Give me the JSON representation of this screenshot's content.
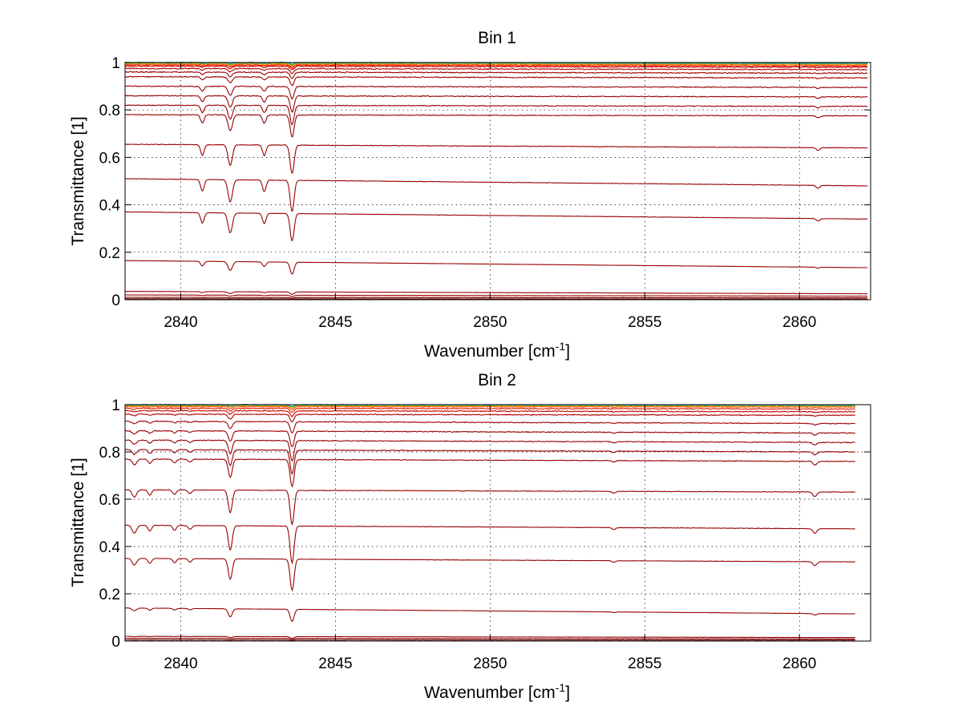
{
  "chart_data": [
    {
      "type": "line",
      "title": "Bin 1",
      "xlabel": "Wavenumber [cm",
      "xlabel_superscript": "-1",
      "xlabel_suffix": "]",
      "ylabel": "Transmittance [1]",
      "xlim": [
        2838.2,
        2862.3
      ],
      "ylim": [
        0,
        1
      ],
      "x_ticks": [
        2840,
        2845,
        2850,
        2855,
        2860
      ],
      "y_ticks": [
        0,
        0.2,
        0.4,
        0.6,
        0.8,
        1
      ],
      "x_tick_labels": [
        "2840",
        "2845",
        "2850",
        "2855",
        "2860"
      ],
      "y_tick_labels": [
        "0",
        "0.2",
        "0.4",
        "0.6",
        "0.8",
        "1"
      ],
      "grid": true,
      "x_end": 2862.2,
      "absorption_lines": [
        {
          "x": 2840.7,
          "relative_depth": 0.12,
          "width": 0.08
        },
        {
          "x": 2841.6,
          "relative_depth": 0.23,
          "width": 0.1
        },
        {
          "x": 2842.7,
          "relative_depth": 0.12,
          "width": 0.08
        },
        {
          "x": 2843.6,
          "relative_depth": 0.32,
          "width": 0.09
        },
        {
          "x": 2860.6,
          "relative_depth": 0.03,
          "width": 0.08
        }
      ],
      "series": [
        {
          "baseline": [
            1.0,
            0.997
          ],
          "color": "#1f9e9e"
        },
        {
          "baseline": [
            0.999,
            0.996
          ],
          "color": "#4caf50"
        },
        {
          "baseline": [
            0.998,
            0.995
          ],
          "color": "#c8c832"
        },
        {
          "baseline": [
            0.996,
            0.993
          ],
          "color": "#ffa500"
        },
        {
          "baseline": [
            0.994,
            0.99
          ],
          "color": "#ff4500"
        },
        {
          "baseline": [
            0.99,
            0.985
          ],
          "color": "#e02000"
        },
        {
          "baseline": [
            0.985,
            0.98
          ],
          "color": "#cc0000"
        },
        {
          "baseline": [
            0.975,
            0.97
          ],
          "color": "#b00000"
        },
        {
          "baseline": [
            0.96,
            0.955
          ],
          "color": "#a00000"
        },
        {
          "baseline": [
            0.94,
            0.935
          ],
          "color": "#a00000"
        },
        {
          "baseline": [
            0.9,
            0.895
          ],
          "color": "#990000"
        },
        {
          "baseline": [
            0.86,
            0.855
          ],
          "color": "#990000"
        },
        {
          "baseline": [
            0.82,
            0.815
          ],
          "color": "#990000"
        },
        {
          "baseline": [
            0.78,
            0.775
          ],
          "color": "#990000"
        },
        {
          "baseline": [
            0.655,
            0.64
          ],
          "color": "#990000"
        },
        {
          "baseline": [
            0.51,
            0.48
          ],
          "color": "#990000"
        },
        {
          "baseline": [
            0.37,
            0.34
          ],
          "color": "#990000"
        },
        {
          "baseline": [
            0.165,
            0.135
          ],
          "color": "#990000"
        },
        {
          "baseline": [
            0.035,
            0.025
          ],
          "color": "#990000"
        },
        {
          "baseline": [
            0.02,
            0.015
          ],
          "color": "#990000"
        },
        {
          "baseline": [
            0.01,
            0.008
          ],
          "color": "#800000"
        },
        {
          "baseline": [
            0.004,
            0.003
          ],
          "color": "#700000"
        }
      ]
    },
    {
      "type": "line",
      "title": "Bin 2",
      "xlabel": "Wavenumber [cm",
      "xlabel_superscript": "-1",
      "xlabel_suffix": "]",
      "ylabel": "Transmittance [1]",
      "xlim": [
        2838.2,
        2862.3
      ],
      "ylim": [
        0,
        1
      ],
      "x_ticks": [
        2840,
        2845,
        2850,
        2855,
        2860
      ],
      "y_ticks": [
        0,
        0.2,
        0.4,
        0.6,
        0.8,
        1
      ],
      "x_tick_labels": [
        "2840",
        "2845",
        "2850",
        "2855",
        "2860"
      ],
      "y_tick_labels": [
        "0",
        "0.2",
        "0.4",
        "0.6",
        "0.8",
        "1"
      ],
      "grid": true,
      "x_end": 2861.8,
      "absorption_lines": [
        {
          "x": 2838.5,
          "relative_depth": 0.08,
          "width": 0.1
        },
        {
          "x": 2839.0,
          "relative_depth": 0.06,
          "width": 0.08
        },
        {
          "x": 2839.8,
          "relative_depth": 0.05,
          "width": 0.08
        },
        {
          "x": 2840.3,
          "relative_depth": 0.04,
          "width": 0.08
        },
        {
          "x": 2841.6,
          "relative_depth": 0.25,
          "width": 0.09
        },
        {
          "x": 2843.6,
          "relative_depth": 0.38,
          "width": 0.09
        },
        {
          "x": 2854.0,
          "relative_depth": 0.02,
          "width": 0.08
        },
        {
          "x": 2860.5,
          "relative_depth": 0.05,
          "width": 0.09
        }
      ],
      "series": [
        {
          "baseline": [
            1.0,
            0.998
          ],
          "color": "#1f9e9e"
        },
        {
          "baseline": [
            0.999,
            0.997
          ],
          "color": "#4caf50"
        },
        {
          "baseline": [
            0.998,
            0.996
          ],
          "color": "#c8c832"
        },
        {
          "baseline": [
            0.996,
            0.994
          ],
          "color": "#ffa500"
        },
        {
          "baseline": [
            0.992,
            0.99
          ],
          "color": "#ff4500"
        },
        {
          "baseline": [
            0.985,
            0.982
          ],
          "color": "#e02000"
        },
        {
          "baseline": [
            0.975,
            0.97
          ],
          "color": "#cc0000"
        },
        {
          "baseline": [
            0.96,
            0.955
          ],
          "color": "#b00000"
        },
        {
          "baseline": [
            0.93,
            0.92
          ],
          "color": "#a00000"
        },
        {
          "baseline": [
            0.89,
            0.88
          ],
          "color": "#990000"
        },
        {
          "baseline": [
            0.85,
            0.84
          ],
          "color": "#990000"
        },
        {
          "baseline": [
            0.81,
            0.8
          ],
          "color": "#990000"
        },
        {
          "baseline": [
            0.77,
            0.76
          ],
          "color": "#990000"
        },
        {
          "baseline": [
            0.64,
            0.63
          ],
          "color": "#990000"
        },
        {
          "baseline": [
            0.49,
            0.475
          ],
          "color": "#990000"
        },
        {
          "baseline": [
            0.35,
            0.335
          ],
          "color": "#990000"
        },
        {
          "baseline": [
            0.14,
            0.115
          ],
          "color": "#990000"
        },
        {
          "baseline": [
            0.02,
            0.015
          ],
          "color": "#990000"
        },
        {
          "baseline": [
            0.012,
            0.009
          ],
          "color": "#800000"
        },
        {
          "baseline": [
            0.005,
            0.004
          ],
          "color": "#700000"
        }
      ]
    }
  ]
}
